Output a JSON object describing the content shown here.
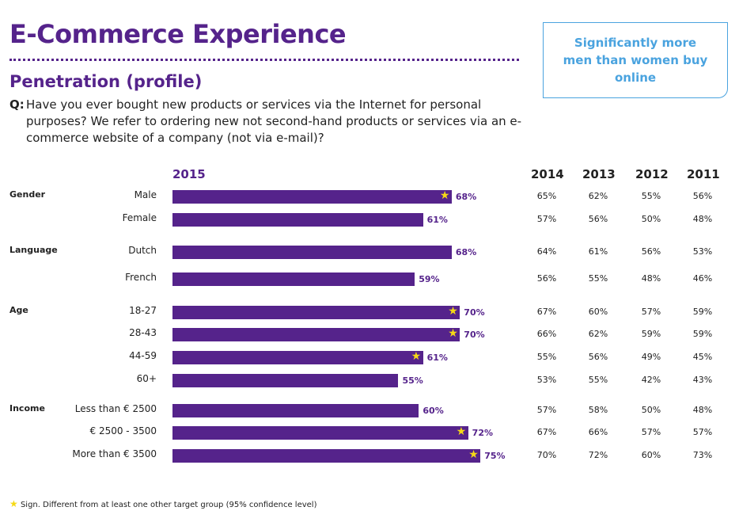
{
  "header": {
    "title": "E-Commerce Experience",
    "subtitle": "Penetration (profile)",
    "question_label": "Q:",
    "question": "Have you ever bought new products or services via the Internet for personal purposes? We refer to ordering new not second-hand products or services via an e-commerce website of a company (not via e-mail)?"
  },
  "callout": "Significantly more men than women buy online",
  "footnote": "Sign. Different from at least one other target group (95% confidence level)",
  "colors": {
    "bar": "#55238b",
    "star": "#f5d916",
    "callout": "#4aa3df"
  },
  "chart_data": {
    "type": "bar",
    "orientation": "horizontal",
    "columns": [
      "2015",
      "2014",
      "2013",
      "2012",
      "2011"
    ],
    "groups": [
      {
        "name": "Gender",
        "rows": [
          {
            "label": "Male",
            "values": [
              "68%",
              "65%",
              "62%",
              "55%",
              "56%"
            ],
            "v2015": 68,
            "significant": true
          },
          {
            "label": "Female",
            "values": [
              "61%",
              "57%",
              "56%",
              "50%",
              "48%"
            ],
            "v2015": 61,
            "significant": false
          }
        ]
      },
      {
        "name": "Language",
        "rows": [
          {
            "label": "Dutch",
            "values": [
              "68%",
              "64%",
              "61%",
              "56%",
              "53%"
            ],
            "v2015": 68,
            "significant": false
          },
          {
            "label": "French",
            "values": [
              "59%",
              "56%",
              "55%",
              "48%",
              "46%"
            ],
            "v2015": 59,
            "significant": false
          }
        ]
      },
      {
        "name": "Age",
        "rows": [
          {
            "label": "18-27",
            "values": [
              "70%",
              "67%",
              "60%",
              "57%",
              "59%"
            ],
            "v2015": 70,
            "significant": true
          },
          {
            "label": "28-43",
            "values": [
              "70%",
              "66%",
              "62%",
              "59%",
              "59%"
            ],
            "v2015": 70,
            "significant": true
          },
          {
            "label": "44-59",
            "values": [
              "61%",
              "55%",
              "56%",
              "49%",
              "45%"
            ],
            "v2015": 61,
            "significant": true
          },
          {
            "label": "60+",
            "values": [
              "55%",
              "53%",
              "55%",
              "42%",
              "43%"
            ],
            "v2015": 55,
            "significant": false
          }
        ]
      },
      {
        "name": "Income",
        "rows": [
          {
            "label": "Less than € 2500",
            "values": [
              "60%",
              "57%",
              "58%",
              "50%",
              "48%"
            ],
            "v2015": 60,
            "significant": false
          },
          {
            "label": "€ 2500 - 3500",
            "values": [
              "72%",
              "67%",
              "66%",
              "57%",
              "57%"
            ],
            "v2015": 72,
            "significant": true
          },
          {
            "label": "More than € 3500",
            "values": [
              "75%",
              "70%",
              "72%",
              "60%",
              "73%"
            ],
            "v2015": 75,
            "significant": true
          }
        ]
      }
    ]
  }
}
